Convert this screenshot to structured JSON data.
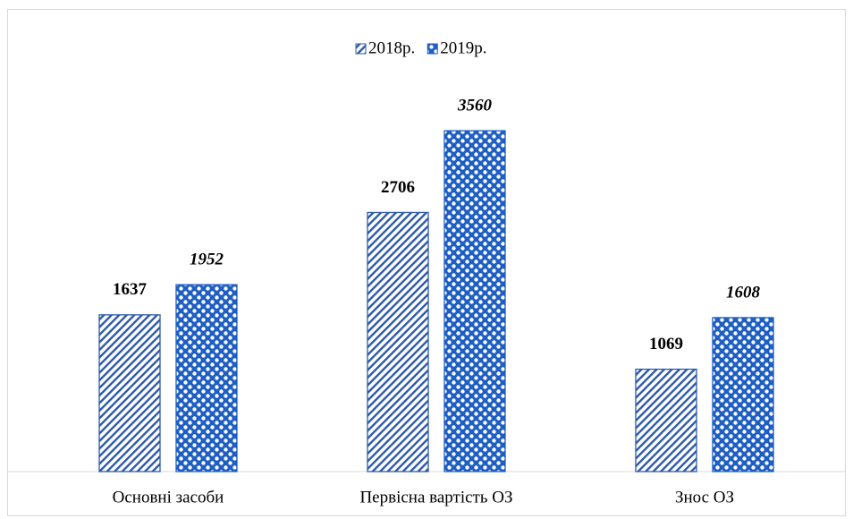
{
  "chart_data": {
    "type": "bar",
    "categories": [
      "Основні засоби",
      "Первісна вартість ОЗ",
      "Знос ОЗ"
    ],
    "series": [
      {
        "name": "2018р.",
        "color": "#2e5aa8",
        "values": [
          1637,
          2706,
          1069
        ]
      },
      {
        "name": "2019р.",
        "color": "#1f5fc4",
        "values": [
          1952,
          3560,
          1608
        ]
      }
    ],
    "ylim": [
      0,
      4000
    ]
  }
}
